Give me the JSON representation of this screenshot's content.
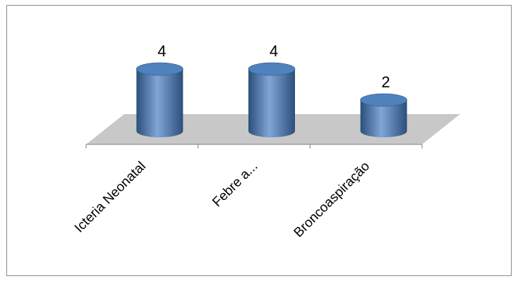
{
  "chart_data": {
    "type": "bar",
    "style": "3d-cylinder",
    "categories": [
      "Icteria Neonatal",
      "Febre a...",
      "Broncoaspiração"
    ],
    "values": [
      4,
      4,
      2
    ],
    "data_labels": [
      "4",
      "4",
      "2"
    ],
    "title": "",
    "xlabel": "",
    "ylabel": "",
    "ylim": [
      0,
      4
    ],
    "grid": false,
    "legend": "none"
  },
  "colors": {
    "bar": "#4f81bd",
    "bar_dark": "#2c4f7a",
    "bar_light": "#7fa6d8",
    "floor": "#c8c8c8",
    "frame": "#888888",
    "axis": "#7f7f7f"
  }
}
